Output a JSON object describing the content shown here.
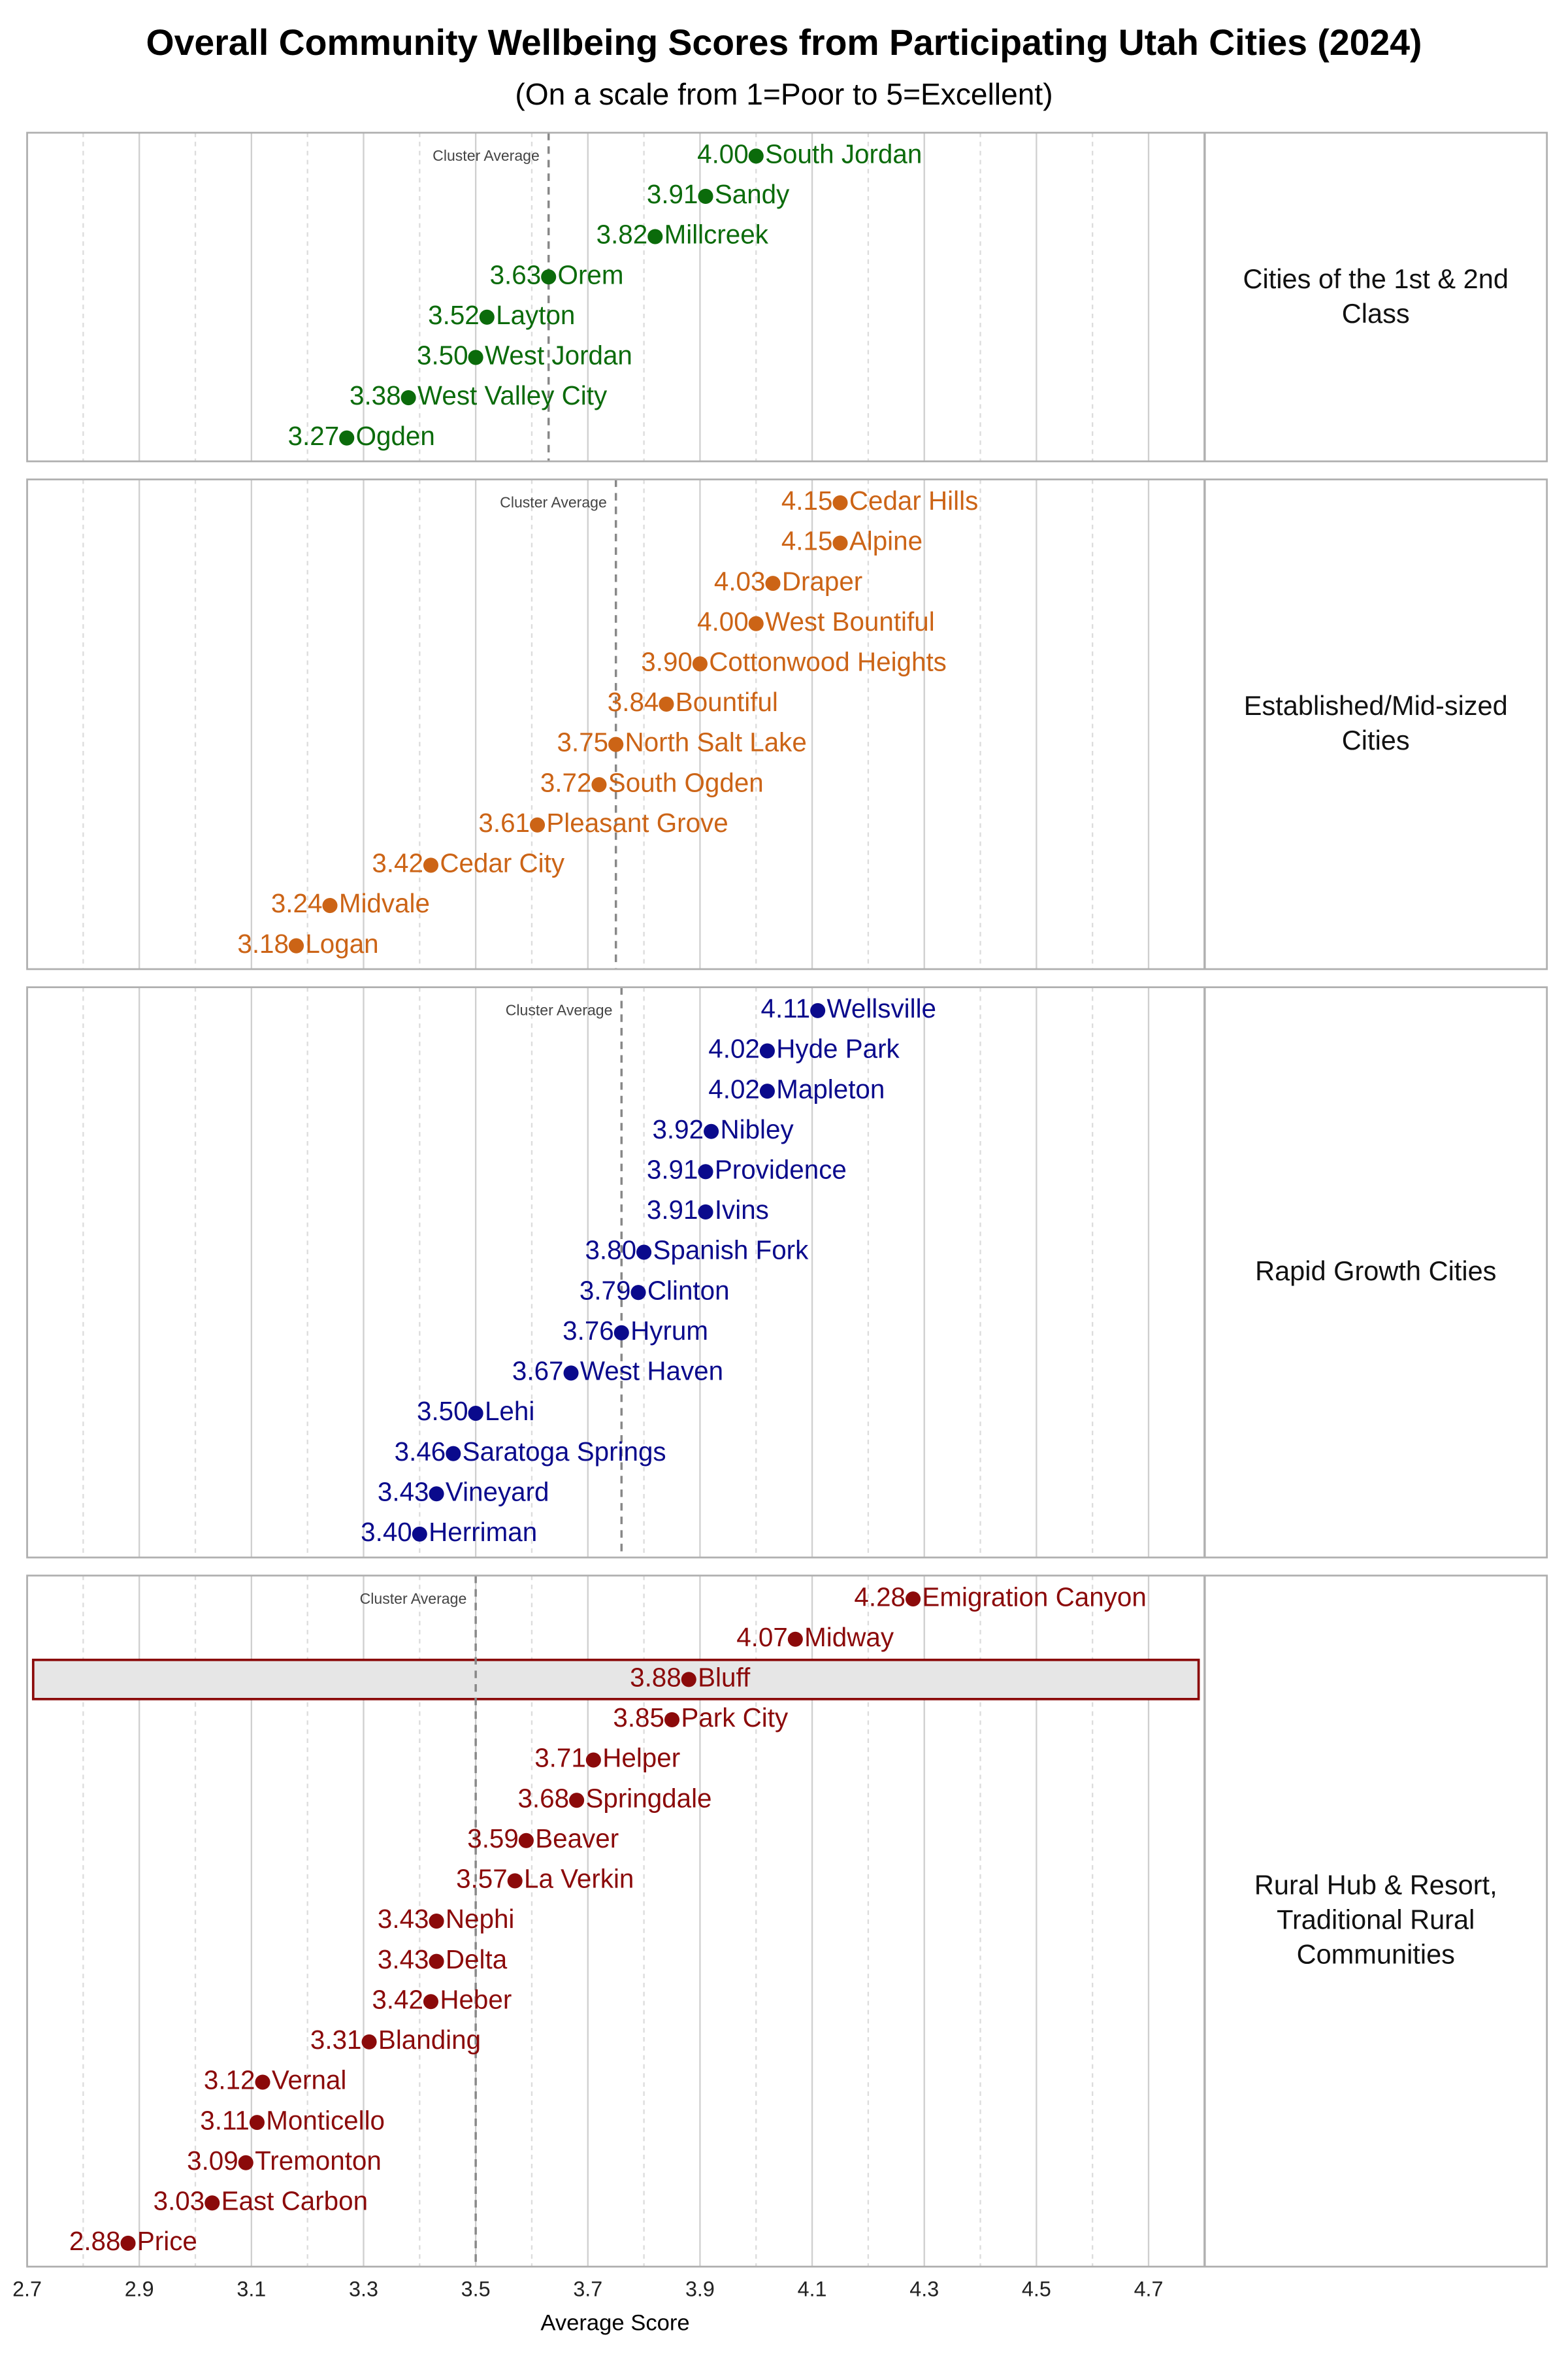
{
  "chart_data": {
    "type": "dot",
    "title": "Overall Community Wellbeing Scores from Participating Utah Cities (2024)",
    "subtitle": "(On a scale from 1=Poor to 5=Excellent)",
    "x_label": "Average Score",
    "xlim": [
      2.7,
      4.8
    ],
    "xticks": [
      2.7,
      2.9,
      3.1,
      3.3,
      3.5,
      3.7,
      3.9,
      4.1,
      4.3,
      4.5,
      4.7
    ],
    "grid": true,
    "panels": [
      {
        "title": "Cities of the 1st & 2nd Class",
        "color": "#0b6b0b",
        "cluster_average": {
          "value": 3.63,
          "label": "Cluster Average"
        },
        "categories": [
          "South Jordan",
          "Sandy",
          "Millcreek",
          "Orem",
          "Layton",
          "West Jordan",
          "West Valley City",
          "Ogden"
        ],
        "values": [
          4.0,
          3.91,
          3.82,
          3.63,
          3.52,
          3.5,
          3.38,
          3.27
        ],
        "value_labels": [
          "4.00",
          "3.91",
          "3.82",
          "3.63",
          "3.52",
          "3.50",
          "3.38",
          "3.27"
        ]
      },
      {
        "title": "Established/Mid-sized Cities",
        "color": "#cc6416",
        "cluster_average": {
          "value": 3.75,
          "label": "Cluster Average"
        },
        "categories": [
          "Cedar Hills",
          "Alpine",
          "Draper",
          "West Bountiful",
          "Cottonwood Heights",
          "Bountiful",
          "North Salt Lake",
          "South Ogden",
          "Pleasant Grove",
          "Cedar City",
          "Midvale",
          "Logan"
        ],
        "values": [
          4.15,
          4.15,
          4.03,
          4.0,
          3.9,
          3.84,
          3.75,
          3.72,
          3.61,
          3.42,
          3.24,
          3.18
        ],
        "value_labels": [
          "4.15",
          "4.15",
          "4.03",
          "4.00",
          "3.90",
          "3.84",
          "3.75",
          "3.72",
          "3.61",
          "3.42",
          "3.24",
          "3.18"
        ]
      },
      {
        "title": "Rapid Growth Cities",
        "color": "#0a0a8c",
        "cluster_average": {
          "value": 3.76,
          "label": "Cluster Average"
        },
        "categories": [
          "Wellsville",
          "Hyde Park",
          "Mapleton",
          "Nibley",
          "Providence",
          "Ivins",
          "Spanish Fork",
          "Clinton",
          "Hyrum",
          "West Haven",
          "Lehi",
          "Saratoga Springs",
          "Vineyard",
          "Herriman"
        ],
        "values": [
          4.11,
          4.02,
          4.02,
          3.92,
          3.91,
          3.91,
          3.8,
          3.79,
          3.76,
          3.67,
          3.5,
          3.46,
          3.43,
          3.4
        ],
        "value_labels": [
          "4.11",
          "4.02",
          "4.02",
          "3.92",
          "3.91",
          "3.91",
          "3.80",
          "3.79",
          "3.76",
          "3.67",
          "3.50",
          "3.46",
          "3.43",
          "3.40"
        ]
      },
      {
        "title": "Rural Hub & Resort, Traditional Rural Communities",
        "color": "#8b0a0a",
        "cluster_average": {
          "value": 3.5,
          "label": "Cluster Average"
        },
        "highlight_index": 2,
        "categories": [
          "Emigration Canyon",
          "Midway",
          "Bluff",
          "Park City",
          "Helper",
          "Springdale",
          "Beaver",
          "La Verkin",
          "Nephi",
          "Delta",
          "Heber",
          "Blanding",
          "Vernal",
          "Monticello",
          "Tremonton",
          "East Carbon",
          "Price"
        ],
        "values": [
          4.28,
          4.07,
          3.88,
          3.85,
          3.71,
          3.68,
          3.59,
          3.57,
          3.43,
          3.43,
          3.42,
          3.31,
          3.12,
          3.11,
          3.09,
          3.03,
          2.88
        ],
        "value_labels": [
          "4.28",
          "4.07",
          "3.88",
          "3.85",
          "3.71",
          "3.68",
          "3.59",
          "3.57",
          "3.43",
          "3.43",
          "3.42",
          "3.31",
          "3.12",
          "3.11",
          "3.09",
          "3.03",
          "2.88"
        ]
      }
    ]
  }
}
